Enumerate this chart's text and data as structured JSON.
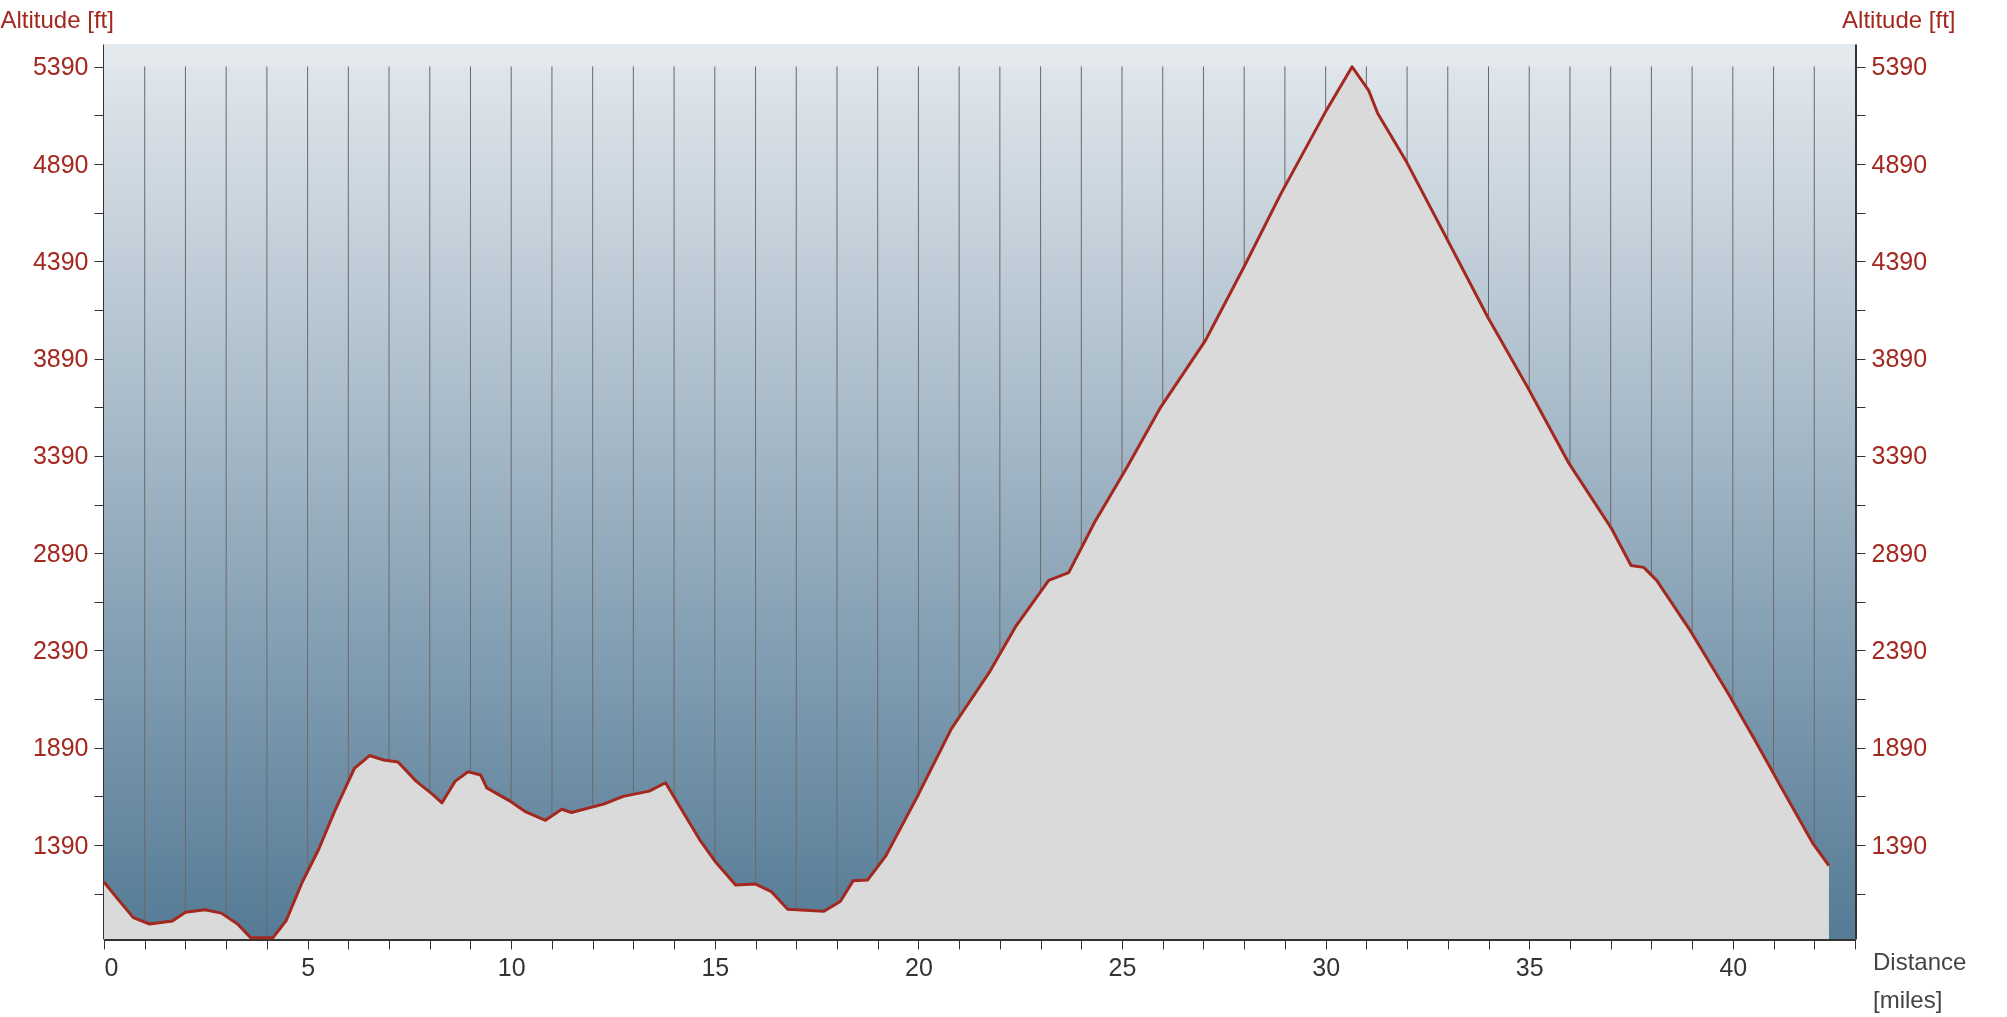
{
  "chart_data": {
    "type": "area",
    "xlabel": "Distance [miles]",
    "ylabel": "Altitude [ft]",
    "y2label": "Altitude [ft]",
    "x": [
      0,
      0.32,
      0.72,
      1.12,
      1.68,
      2.0,
      2.48,
      2.88,
      3.28,
      3.6,
      4.15,
      4.47,
      4.87,
      5.27,
      5.67,
      6.15,
      6.52,
      6.87,
      7.22,
      7.67,
      8.07,
      8.3,
      8.62,
      8.94,
      9.25,
      9.4,
      9.96,
      10.36,
      10.84,
      11.24,
      11.48,
      12.27,
      12.75,
      13.39,
      13.79,
      14.15,
      14.63,
      15.03,
      15.51,
      15.99,
      16.39,
      16.79,
      17.68,
      18.08,
      18.4,
      18.75,
      19.2,
      20.0,
      20.8,
      21.12,
      21.76,
      22.4,
      23.2,
      23.69,
      24.33,
      25.13,
      25.93,
      27.05,
      28.01,
      28.89,
      30.02,
      30.65,
      31.06,
      31.28,
      31.99,
      32.95,
      33.99,
      34.94,
      35.98,
      37.02,
      37.5,
      37.81,
      38.13,
      38.93,
      39.89,
      40.53,
      41.24,
      41.96,
      42.36
    ],
    "series": [
      {
        "color": "#a3281f",
        "values": [
          1200,
          1117,
          1017,
          984,
          1000,
          1044,
          1057,
          1040,
          984,
          914,
          914,
          1000,
          1200,
          1367,
          1567,
          1784,
          1850,
          1827,
          1817,
          1717,
          1650,
          1607,
          1717,
          1767,
          1750,
          1684,
          1617,
          1560,
          1517,
          1574,
          1557,
          1600,
          1640,
          1667,
          1710,
          1584,
          1417,
          1300,
          1184,
          1190,
          1150,
          1060,
          1050,
          1100,
          1207,
          1210,
          1334,
          1650,
          1984,
          2084,
          2284,
          2517,
          2750,
          2790,
          3050,
          3334,
          3634,
          3984,
          4367,
          4733,
          5167,
          5390,
          5267,
          5150,
          4900,
          4517,
          4100,
          3750,
          3350,
          3017,
          2827,
          2817,
          2750,
          2500,
          2167,
          1934,
          1667,
          1400,
          1284
        ]
      }
    ],
    "xlim": [
      0,
      43
    ],
    "xticks": [
      0,
      {
        "value": 1,
        "label": null
      },
      {
        "value": 2,
        "label": null
      },
      {
        "value": 3,
        "label": null
      },
      {
        "value": 4,
        "label": null
      },
      5,
      {
        "value": 6,
        "label": null
      },
      {
        "value": 7,
        "label": null
      },
      {
        "value": 8,
        "label": null
      },
      {
        "value": 9,
        "label": null
      },
      10,
      {
        "value": 11,
        "label": null
      },
      {
        "value": 12,
        "label": null
      },
      {
        "value": 13,
        "label": null
      },
      {
        "value": 14,
        "label": null
      },
      15,
      {
        "value": 16,
        "label": null
      },
      {
        "value": 17,
        "label": null
      },
      {
        "value": 18,
        "label": null
      },
      {
        "value": 19,
        "label": null
      },
      20,
      {
        "value": 21,
        "label": null
      },
      {
        "value": 22,
        "label": null
      },
      {
        "value": 23,
        "label": null
      },
      {
        "value": 24,
        "label": null
      },
      25,
      {
        "value": 26,
        "label": null
      },
      {
        "value": 27,
        "label": null
      },
      {
        "value": 28,
        "label": null
      },
      {
        "value": 29,
        "label": null
      },
      30,
      {
        "value": 31,
        "label": null
      },
      {
        "value": 32,
        "label": null
      },
      {
        "value": 33,
        "label": null
      },
      {
        "value": 34,
        "label": null
      },
      35,
      {
        "value": 36,
        "label": null
      },
      {
        "value": 37,
        "label": null
      },
      {
        "value": 38,
        "label": null
      },
      {
        "value": 39,
        "label": null
      },
      40,
      {
        "value": 41,
        "label": null
      },
      {
        "value": 42,
        "label": null
      },
      {
        "value": 43,
        "label": null
      }
    ],
    "ylim": [
      907,
      5507
    ],
    "yticks": [
      {
        "value": 1140,
        "label": null
      },
      1390,
      {
        "value": 1640,
        "label": null
      },
      1890,
      {
        "value": 2140,
        "label": null
      },
      2390,
      {
        "value": 2640,
        "label": null
      },
      2890,
      {
        "value": 3140,
        "label": null
      },
      3390,
      {
        "value": 3640,
        "label": null
      },
      3890,
      {
        "value": 4140,
        "label": null
      },
      4390,
      {
        "value": 4640,
        "label": null
      },
      4890,
      {
        "value": 5140,
        "label": null
      },
      5390
    ],
    "y2lim": [
      907,
      5507
    ],
    "y2ticks": [
      {
        "value": 1140,
        "label": null
      },
      1390,
      {
        "value": 1640,
        "label": null
      },
      1890,
      {
        "value": 2140,
        "label": null
      },
      2390,
      {
        "value": 2640,
        "label": null
      },
      2890,
      {
        "value": 3140,
        "label": null
      },
      3390,
      {
        "value": 3640,
        "label": null
      },
      3890,
      {
        "value": 4140,
        "label": null
      },
      4390,
      {
        "value": 4640,
        "label": null
      },
      4890,
      {
        "value": 5140,
        "label": null
      },
      5390
    ],
    "grid": "x"
  }
}
